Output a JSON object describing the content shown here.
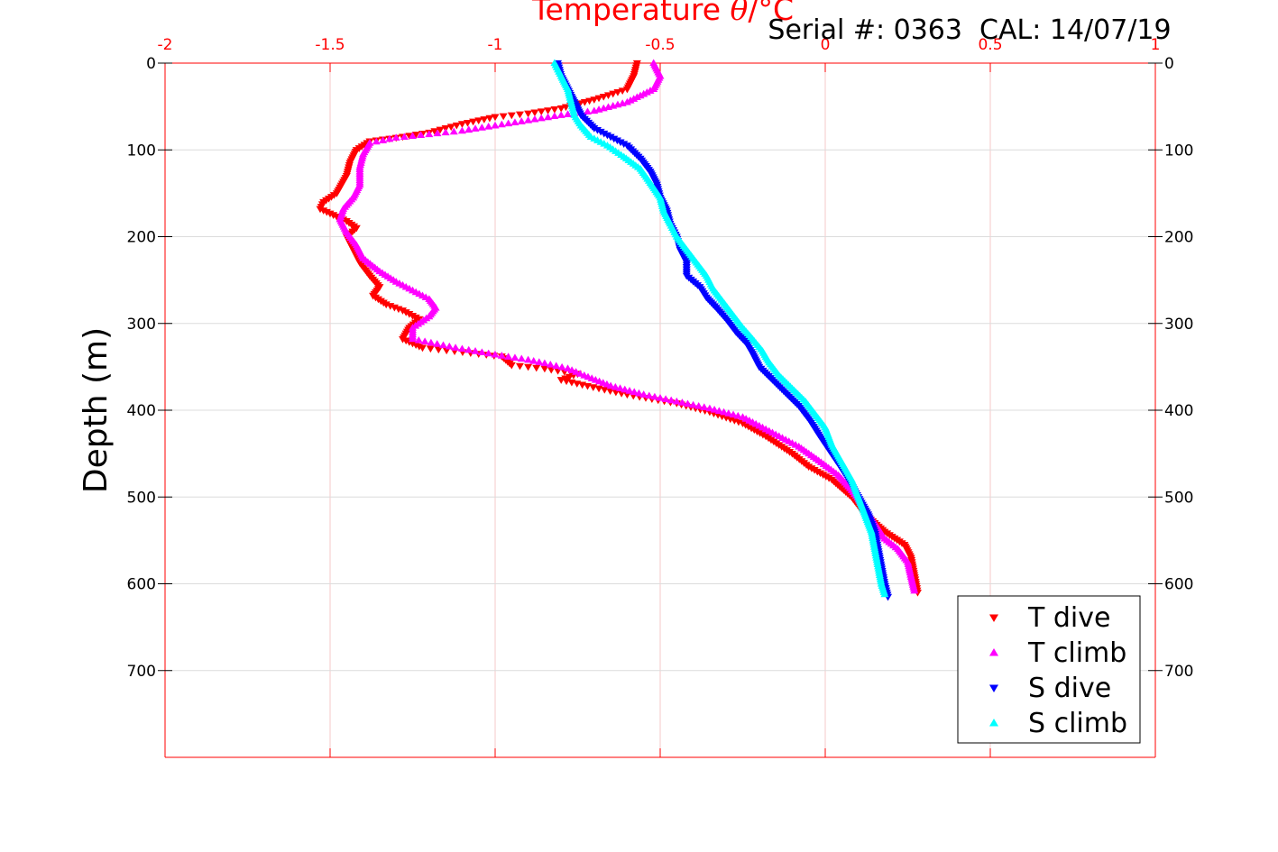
{
  "chart_data": {
    "type": "scatter",
    "title": "Temperature θ/°C",
    "title_parts": [
      "Temperature ",
      "θ",
      "/°C"
    ],
    "annotation": "Serial #: 0363  CAL: 14/07/19",
    "xlabel": "Temperature θ/°C",
    "ylabel": "Depth (m)",
    "xlim": [
      -2,
      1
    ],
    "ylim": [
      0,
      800
    ],
    "y_reversed": true,
    "x_axis_position": "top",
    "x_ticks": [
      -2,
      -1.5,
      -1,
      -0.5,
      0,
      0.5,
      1
    ],
    "x_tick_labels": [
      "-2",
      "-1.5",
      "-1",
      "-0.5",
      "0",
      "0.5",
      "1"
    ],
    "y_ticks": [
      0,
      100,
      200,
      300,
      400,
      500,
      600,
      700
    ],
    "y_tick_labels": [
      "0",
      "100",
      "200",
      "300",
      "400",
      "500",
      "600",
      "700"
    ],
    "grid": true,
    "legend_position": "bottom-right",
    "colors": {
      "axis": "#ff0000",
      "grid": "#f4c8c8",
      "y_axis": "#000000"
    },
    "series": [
      {
        "name": "T dive",
        "color": "#ff0000",
        "marker": "triangle-down",
        "points": [
          [
            -0.57,
            0
          ],
          [
            -0.58,
            15
          ],
          [
            -0.6,
            30
          ],
          [
            -0.7,
            42
          ],
          [
            -0.8,
            52
          ],
          [
            -0.9,
            58
          ],
          [
            -1.0,
            62
          ],
          [
            -1.1,
            70
          ],
          [
            -1.2,
            80
          ],
          [
            -1.3,
            86
          ],
          [
            -1.38,
            90
          ],
          [
            -1.42,
            100
          ],
          [
            -1.44,
            115
          ],
          [
            -1.45,
            130
          ],
          [
            -1.48,
            150
          ],
          [
            -1.52,
            160
          ],
          [
            -1.53,
            168
          ],
          [
            -1.49,
            175
          ],
          [
            -1.45,
            182
          ],
          [
            -1.42,
            190
          ],
          [
            -1.45,
            200
          ],
          [
            -1.43,
            215
          ],
          [
            -1.41,
            230
          ],
          [
            -1.38,
            245
          ],
          [
            -1.35,
            258
          ],
          [
            -1.37,
            268
          ],
          [
            -1.33,
            278
          ],
          [
            -1.28,
            285
          ],
          [
            -1.23,
            295
          ],
          [
            -1.26,
            305
          ],
          [
            -1.28,
            318
          ],
          [
            -1.22,
            328
          ],
          [
            -1.05,
            335
          ],
          [
            -0.98,
            338
          ],
          [
            -0.95,
            348
          ],
          [
            -0.85,
            352
          ],
          [
            -0.75,
            358
          ],
          [
            -0.8,
            365
          ],
          [
            -0.72,
            372
          ],
          [
            -0.6,
            382
          ],
          [
            -0.45,
            392
          ],
          [
            -0.35,
            402
          ],
          [
            -0.25,
            415
          ],
          [
            -0.18,
            430
          ],
          [
            -0.1,
            450
          ],
          [
            -0.05,
            465
          ],
          [
            0.02,
            480
          ],
          [
            0.08,
            500
          ],
          [
            0.12,
            520
          ],
          [
            0.18,
            540
          ],
          [
            0.24,
            555
          ],
          [
            0.26,
            570
          ],
          [
            0.27,
            590
          ],
          [
            0.28,
            610
          ]
        ]
      },
      {
        "name": "T climb",
        "color": "#ff00ff",
        "marker": "triangle-up",
        "points": [
          [
            -0.52,
            0
          ],
          [
            -0.5,
            15
          ],
          [
            -0.52,
            30
          ],
          [
            -0.6,
            45
          ],
          [
            -0.7,
            55
          ],
          [
            -0.8,
            60
          ],
          [
            -0.9,
            66
          ],
          [
            -1.0,
            72
          ],
          [
            -1.1,
            78
          ],
          [
            -1.2,
            82
          ],
          [
            -1.3,
            86
          ],
          [
            -1.38,
            92
          ],
          [
            -1.4,
            105
          ],
          [
            -1.41,
            120
          ],
          [
            -1.41,
            140
          ],
          [
            -1.43,
            155
          ],
          [
            -1.46,
            168
          ],
          [
            -1.47,
            180
          ],
          [
            -1.45,
            195
          ],
          [
            -1.42,
            210
          ],
          [
            -1.4,
            225
          ],
          [
            -1.35,
            240
          ],
          [
            -1.3,
            252
          ],
          [
            -1.25,
            262
          ],
          [
            -1.2,
            272
          ],
          [
            -1.18,
            282
          ],
          [
            -1.2,
            292
          ],
          [
            -1.25,
            305
          ],
          [
            -1.25,
            318
          ],
          [
            -1.12,
            328
          ],
          [
            -1.0,
            336
          ],
          [
            -0.9,
            342
          ],
          [
            -0.85,
            346
          ],
          [
            -0.78,
            352
          ],
          [
            -0.73,
            360
          ],
          [
            -0.65,
            372
          ],
          [
            -0.55,
            382
          ],
          [
            -0.45,
            390
          ],
          [
            -0.35,
            398
          ],
          [
            -0.25,
            408
          ],
          [
            -0.2,
            418
          ],
          [
            -0.15,
            428
          ],
          [
            -0.08,
            442
          ],
          [
            -0.02,
            458
          ],
          [
            0.04,
            475
          ],
          [
            0.08,
            492
          ],
          [
            0.12,
            512
          ],
          [
            0.15,
            530
          ],
          [
            0.18,
            548
          ],
          [
            0.22,
            560
          ],
          [
            0.25,
            575
          ],
          [
            0.26,
            592
          ],
          [
            0.27,
            608
          ]
        ]
      },
      {
        "name": "S dive",
        "color": "#0000ff",
        "marker": "triangle-down",
        "points": [
          [
            -0.81,
            0
          ],
          [
            -0.8,
            15
          ],
          [
            -0.78,
            30
          ],
          [
            -0.76,
            45
          ],
          [
            -0.74,
            60
          ],
          [
            -0.7,
            75
          ],
          [
            -0.65,
            85
          ],
          [
            -0.6,
            95
          ],
          [
            -0.56,
            110
          ],
          [
            -0.53,
            125
          ],
          [
            -0.51,
            140
          ],
          [
            -0.5,
            155
          ],
          [
            -0.48,
            170
          ],
          [
            -0.47,
            185
          ],
          [
            -0.45,
            200
          ],
          [
            -0.44,
            215
          ],
          [
            -0.42,
            230
          ],
          [
            -0.42,
            245
          ],
          [
            -0.38,
            258
          ],
          [
            -0.36,
            270
          ],
          [
            -0.33,
            282
          ],
          [
            -0.3,
            295
          ],
          [
            -0.27,
            310
          ],
          [
            -0.24,
            322
          ],
          [
            -0.22,
            335
          ],
          [
            -0.2,
            350
          ],
          [
            -0.16,
            365
          ],
          [
            -0.12,
            380
          ],
          [
            -0.08,
            395
          ],
          [
            -0.05,
            410
          ],
          [
            -0.02,
            428
          ],
          [
            0.01,
            445
          ],
          [
            0.04,
            462
          ],
          [
            0.07,
            480
          ],
          [
            0.1,
            500
          ],
          [
            0.13,
            520
          ],
          [
            0.15,
            540
          ],
          [
            0.16,
            560
          ],
          [
            0.17,
            580
          ],
          [
            0.18,
            600
          ],
          [
            0.19,
            615
          ]
        ]
      },
      {
        "name": "S climb",
        "color": "#00ffff",
        "marker": "triangle-up",
        "points": [
          [
            -0.82,
            0
          ],
          [
            -0.8,
            15
          ],
          [
            -0.78,
            30
          ],
          [
            -0.77,
            45
          ],
          [
            -0.76,
            60
          ],
          [
            -0.74,
            72
          ],
          [
            -0.71,
            85
          ],
          [
            -0.66,
            95
          ],
          [
            -0.61,
            108
          ],
          [
            -0.56,
            122
          ],
          [
            -0.53,
            138
          ],
          [
            -0.5,
            155
          ],
          [
            -0.49,
            170
          ],
          [
            -0.47,
            185
          ],
          [
            -0.45,
            200
          ],
          [
            -0.42,
            215
          ],
          [
            -0.39,
            230
          ],
          [
            -0.36,
            245
          ],
          [
            -0.34,
            260
          ],
          [
            -0.31,
            275
          ],
          [
            -0.28,
            290
          ],
          [
            -0.25,
            305
          ],
          [
            -0.22,
            318
          ],
          [
            -0.19,
            332
          ],
          [
            -0.17,
            345
          ],
          [
            -0.14,
            360
          ],
          [
            -0.1,
            375
          ],
          [
            -0.06,
            390
          ],
          [
            -0.03,
            405
          ],
          [
            0.0,
            420
          ],
          [
            0.02,
            440
          ],
          [
            0.05,
            460
          ],
          [
            0.08,
            480
          ],
          [
            0.1,
            500
          ],
          [
            0.12,
            520
          ],
          [
            0.14,
            540
          ],
          [
            0.15,
            560
          ],
          [
            0.16,
            580
          ],
          [
            0.17,
            600
          ],
          [
            0.18,
            612
          ]
        ]
      }
    ]
  }
}
